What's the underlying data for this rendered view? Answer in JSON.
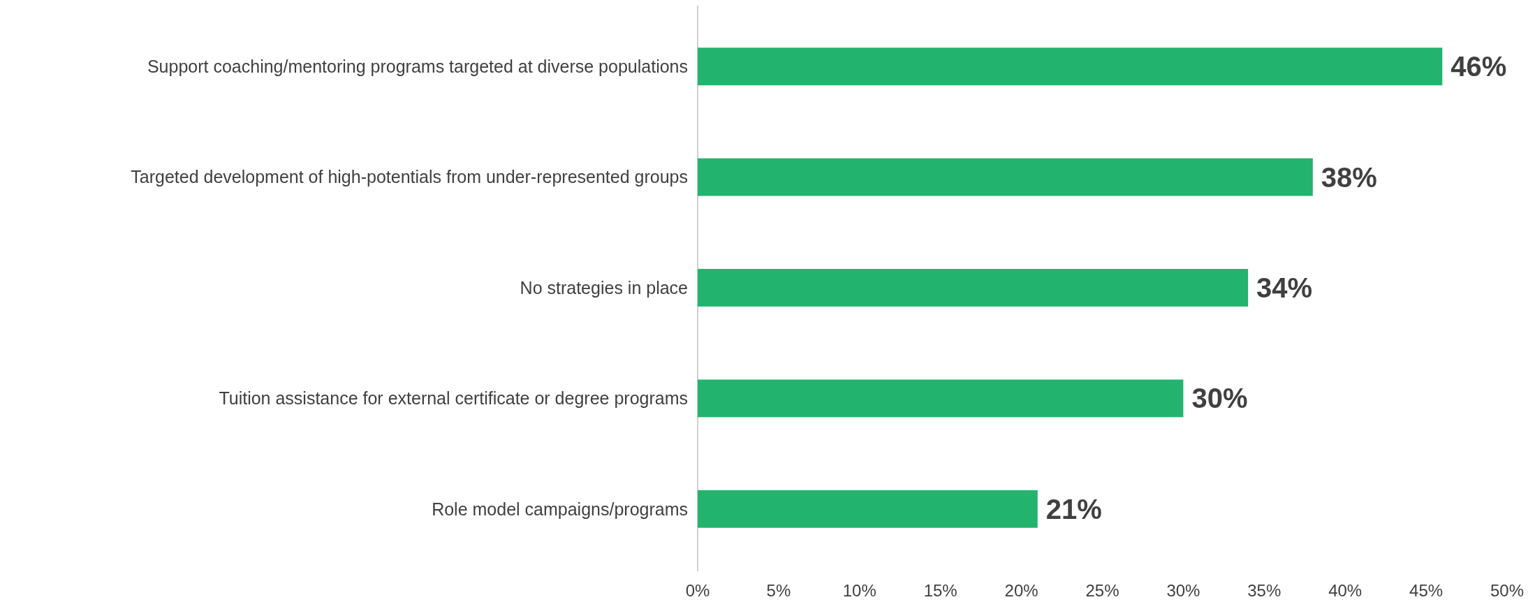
{
  "chart_data": {
    "type": "bar",
    "orientation": "horizontal",
    "categories": [
      "Support coaching/mentoring programs targeted at diverse populations",
      "Targeted development of high-potentials from under-represented groups",
      "No strategies in place",
      "Tuition assistance for external certificate or degree programs",
      "Role model campaigns/programs"
    ],
    "values": [
      46,
      38,
      34,
      30,
      21
    ],
    "color": "#22b46e",
    "value_labels": [
      "46%",
      "38%",
      "34%",
      "30%",
      "21%"
    ],
    "xlim": [
      0,
      50
    ],
    "xticks": [
      {
        "value": 0,
        "label": "0%"
      },
      {
        "value": 5,
        "label": "5%"
      },
      {
        "value": 10,
        "label": "10%"
      },
      {
        "value": 15,
        "label": "15%"
      },
      {
        "value": 20,
        "label": "20%"
      },
      {
        "value": 25,
        "label": "25%"
      },
      {
        "value": 30,
        "label": "30%"
      },
      {
        "value": 35,
        "label": "35%"
      },
      {
        "value": 40,
        "label": "40%"
      },
      {
        "value": 45,
        "label": "45%"
      },
      {
        "value": 50,
        "label": "50%"
      }
    ],
    "grid": false
  }
}
